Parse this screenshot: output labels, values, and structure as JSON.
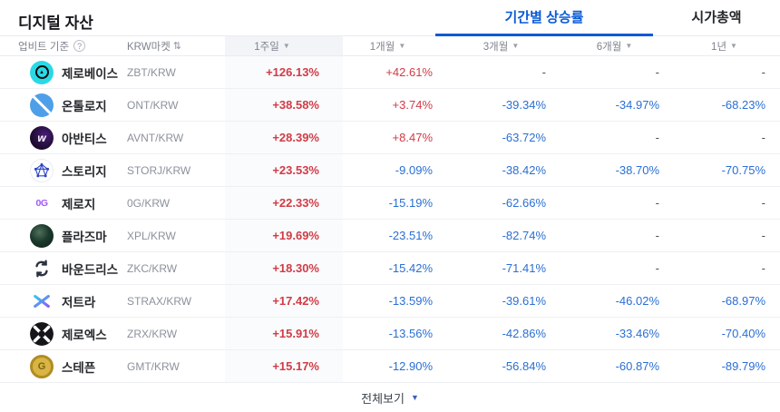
{
  "page": {
    "title": "디지털 자산",
    "tabs": [
      {
        "label": "기간별 상승률",
        "active": true
      },
      {
        "label": "시가총액",
        "active": false
      }
    ],
    "footer": {
      "label": "전체보기"
    }
  },
  "table": {
    "header": {
      "basis_label": "업비트 기준",
      "help_icon": "?",
      "market_label": "KRW마켓",
      "sort_icon": "⇅",
      "period_columns": [
        "1주일",
        "1개월",
        "3개월",
        "6개월",
        "1년"
      ]
    },
    "rows": [
      {
        "name": "제로베이스",
        "pair": "ZBT/KRW",
        "icon": "zerobase",
        "values": [
          "+126.13%",
          "+42.61%",
          "-",
          "-",
          "-"
        ]
      },
      {
        "name": "온톨로지",
        "pair": "ONT/KRW",
        "icon": "ontology",
        "values": [
          "+38.58%",
          "+3.74%",
          "-39.34%",
          "-34.97%",
          "-68.23%"
        ]
      },
      {
        "name": "아반티스",
        "pair": "AVNT/KRW",
        "icon": "avantis",
        "values": [
          "+28.39%",
          "+8.47%",
          "-63.72%",
          "-",
          "-"
        ]
      },
      {
        "name": "스토리지",
        "pair": "STORJ/KRW",
        "icon": "storj",
        "values": [
          "+23.53%",
          "-9.09%",
          "-38.42%",
          "-38.70%",
          "-70.75%"
        ]
      },
      {
        "name": "제로지",
        "pair": "0G/KRW",
        "icon": "zerog",
        "values": [
          "+22.33%",
          "-15.19%",
          "-62.66%",
          "-",
          "-"
        ]
      },
      {
        "name": "플라즈마",
        "pair": "XPL/KRW",
        "icon": "plasma",
        "values": [
          "+19.69%",
          "-23.51%",
          "-82.74%",
          "-",
          "-"
        ]
      },
      {
        "name": "바운드리스",
        "pair": "ZKC/KRW",
        "icon": "boundless",
        "values": [
          "+18.30%",
          "-15.42%",
          "-71.41%",
          "-",
          "-"
        ]
      },
      {
        "name": "저트라",
        "pair": "STRAX/KRW",
        "icon": "zetrra",
        "values": [
          "+17.42%",
          "-13.59%",
          "-39.61%",
          "-46.02%",
          "-68.97%"
        ]
      },
      {
        "name": "제로엑스",
        "pair": "ZRX/KRW",
        "icon": "zerox",
        "values": [
          "+15.91%",
          "-13.56%",
          "-42.86%",
          "-33.46%",
          "-70.40%"
        ]
      },
      {
        "name": "스테픈",
        "pair": "GMT/KRW",
        "icon": "stepn",
        "values": [
          "+15.17%",
          "-12.90%",
          "-56.84%",
          "-60.87%",
          "-89.79%"
        ]
      }
    ]
  },
  "colors": {
    "rise": "#d13c46",
    "fall": "#2a6fd4",
    "accent": "#0a5ad6"
  }
}
